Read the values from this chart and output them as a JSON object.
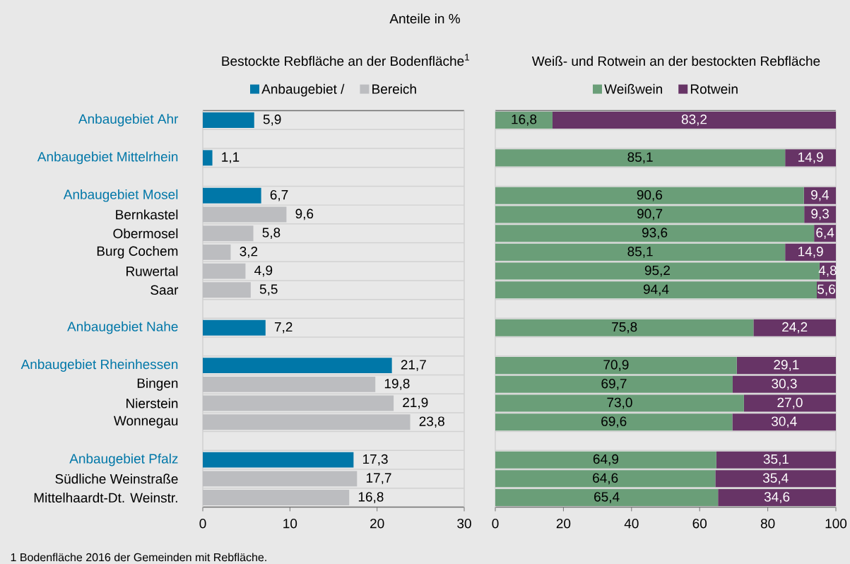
{
  "chart_data": [
    {
      "type": "bar",
      "orientation": "horizontal",
      "title": "Anteile in %",
      "subtitle": "Bestockte Rebfläche  an der Bodenfläche$^{1}$",
      "categories": [
        "Anbaugebiet Ahr",
        null,
        "Anbaugebiet Mittelrhein",
        null,
        "Anbaugebiet Mosel",
        "Bernkastel",
        "Obermosel",
        "Burg Cochem",
        "Ruwertal",
        "Saar",
        null,
        "Anbaugebiet Nahe",
        null,
        "Anbaugebiet Rheinhessen",
        "Bingen",
        "Nierstein",
        "Wonnegau",
        null,
        "Anbaugebiet Pfalz",
        "Südliche Weinstraße",
        "Mittelhaardt-Dt. Weinstr."
      ],
      "series": [
        {
          "name": "Anbaugebiet /",
          "color": "#0077a8",
          "values": [
            5.9,
            null,
            1.1,
            null,
            6.7,
            null,
            null,
            null,
            null,
            null,
            null,
            7.2,
            null,
            21.7,
            null,
            null,
            null,
            null,
            17.3,
            null,
            null
          ],
          "value_labels": [
            "5,9",
            null,
            "1,1",
            null,
            "6,7",
            null,
            null,
            null,
            null,
            null,
            null,
            "7,2",
            null,
            "21,7",
            null,
            null,
            null,
            null,
            "17,3",
            null,
            null
          ]
        },
        {
          "name": "Bereich",
          "color": "#bcbdc0",
          "values": [
            null,
            null,
            null,
            null,
            null,
            9.6,
            5.8,
            3.2,
            4.9,
            5.5,
            null,
            null,
            null,
            null,
            19.8,
            21.9,
            23.8,
            null,
            null,
            17.7,
            16.8
          ],
          "value_labels": [
            null,
            null,
            null,
            null,
            null,
            "9,6",
            "5,8",
            "3,2",
            "4,9",
            "5,5",
            null,
            null,
            null,
            null,
            "19,8",
            "21,9",
            "23,8",
            null,
            null,
            "17,7",
            "16,8"
          ]
        }
      ],
      "xlim": [
        0,
        30
      ],
      "xticks": [
        0,
        10,
        20,
        30
      ],
      "grid": "y",
      "legend": "top",
      "annotations": [
        "1 Bodenfläche 2016 der Gemeinden mit Rebfläche."
      ]
    },
    {
      "type": "bar",
      "orientation": "horizontal",
      "stacked": true,
      "title": "Weiß- und Rotwein an der bestockten Rebfläche",
      "categories": [
        null,
        null,
        null,
        null,
        null,
        null,
        null,
        null,
        null,
        null,
        null,
        null,
        null,
        null,
        null,
        null,
        null,
        null,
        null,
        null,
        null
      ],
      "series": [
        {
          "name": "Weißwein",
          "color": "#6a9e78",
          "values": [
            16.8,
            null,
            85.1,
            null,
            90.6,
            90.7,
            93.6,
            85.1,
            95.2,
            94.4,
            null,
            75.8,
            null,
            70.9,
            69.7,
            73.0,
            69.6,
            null,
            64.9,
            64.6,
            65.4
          ],
          "value_labels": [
            "16,8",
            null,
            "85,1",
            null,
            "90,6",
            "90,7",
            "93,6",
            "85,1",
            "95,2",
            "94,4",
            null,
            "75,8",
            null,
            "70,9",
            "69,7",
            "73,0",
            "69,6",
            null,
            "64,9",
            "64,6",
            "65,4"
          ]
        },
        {
          "name": "Rotwein",
          "color": "#673466",
          "values": [
            83.2,
            null,
            14.9,
            null,
            9.4,
            9.3,
            6.4,
            14.9,
            4.8,
            5.6,
            null,
            24.2,
            null,
            29.1,
            30.3,
            27.0,
            30.4,
            null,
            35.1,
            35.4,
            34.6
          ],
          "value_labels": [
            "83,2",
            null,
            "14,9",
            null,
            "9,4",
            "9,3",
            "6,4",
            "14,9",
            "4,8",
            "5,6",
            null,
            "24,2",
            null,
            "29,1",
            "30,3",
            "27,0",
            "30,4",
            null,
            "35,1",
            "35,4",
            "34,6"
          ]
        }
      ],
      "xlim": [
        0,
        100
      ],
      "xticks": [
        0,
        20,
        40,
        60,
        80,
        100
      ],
      "grid": "y",
      "legend": "top"
    }
  ]
}
